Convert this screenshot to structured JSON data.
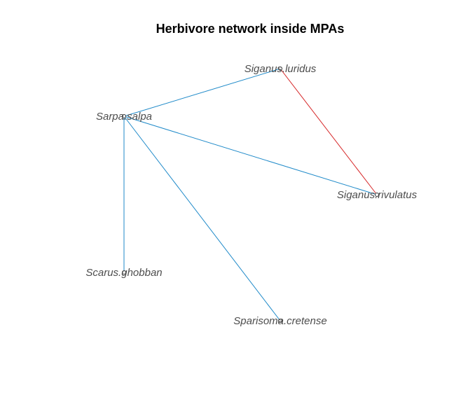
{
  "title": "Herbivore network inside MPAs",
  "nodes": [
    {
      "id": "siganus_luridus",
      "label": "Siganus.luridus"
    },
    {
      "id": "sarpa_salpa",
      "label": "Sarpa.salpa"
    },
    {
      "id": "siganus_rivulatus",
      "label": "Siganus.rivulatus"
    },
    {
      "id": "scarus_ghobban",
      "label": "Scarus.ghobban"
    },
    {
      "id": "sparisoma_cretense",
      "label": "Sparisoma.cretense"
    }
  ],
  "edges": [
    {
      "from": "sarpa_salpa",
      "to": "siganus_luridus",
      "color": "#1f8ac9"
    },
    {
      "from": "siganus_luridus",
      "to": "siganus_rivulatus",
      "color": "#d62728"
    },
    {
      "from": "sarpa_salpa",
      "to": "siganus_rivulatus",
      "color": "#1f8ac9"
    },
    {
      "from": "sarpa_salpa",
      "to": "scarus_ghobban",
      "color": "#1f8ac9"
    },
    {
      "from": "sarpa_salpa",
      "to": "sparisoma_cretense",
      "color": "#1f8ac9"
    }
  ]
}
